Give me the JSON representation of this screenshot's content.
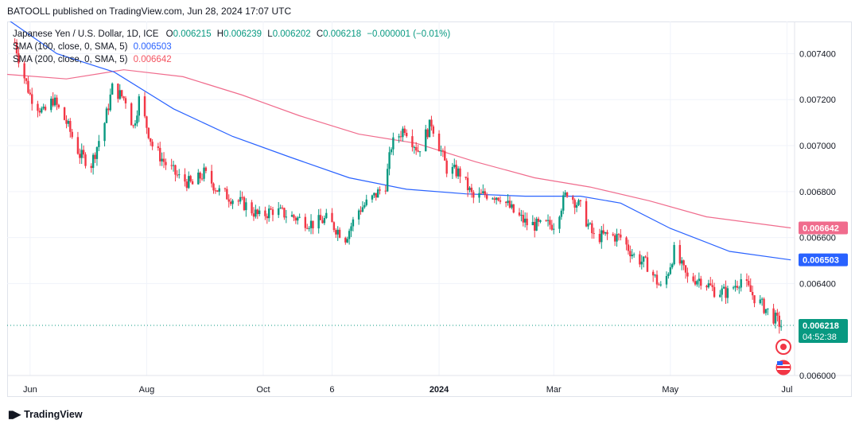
{
  "header": {
    "publisher_text": "BATOOLL published on TradingView.com, Jun 28, 2024 17:07 UTC"
  },
  "legend": {
    "symbol": "Japanese Yen / U.S. Dollar, 1D, ICE",
    "open_label": "O",
    "open": "0.006215",
    "high_label": "H",
    "high": "0.006239",
    "low_label": "L",
    "low": "0.006202",
    "close_label": "C",
    "close": "0.006218",
    "change": "−0.000001 (−0.01%)",
    "sma100_label": "SMA (100, close, 0, SMA, 5)",
    "sma100_value": "0.006503",
    "sma200_label": "SMA (200, close, 0, SMA, 5)",
    "sma200_value": "0.006642"
  },
  "footer": {
    "brand": "TradingView"
  },
  "colors": {
    "up": "#089981",
    "down": "#f23645",
    "sma100": "#2962ff",
    "sma200": "#f06c8d",
    "grid": "#f0f3fa",
    "axis_text": "#131722",
    "last_price_bg": "#089981"
  },
  "chart_data": {
    "type": "line",
    "title": "Japanese Yen / U.S. Dollar, 1D, ICE",
    "x_ticks": [
      "Jun",
      "Aug",
      "Oct",
      "6",
      "2024",
      "Mar",
      "May",
      "Jul"
    ],
    "y_ticks": [
      "0.007400",
      "0.007200",
      "0.007000",
      "0.006800",
      "0.006600",
      "0.006400",
      "0.006000"
    ],
    "ylim": [
      0.006,
      0.00754
    ],
    "grid": true,
    "last_price": "0.006218",
    "countdown": "04:52:38",
    "sma100_last": "0.006503",
    "sma200_last": "0.006642",
    "price_path": [
      [
        "2023-05-24",
        0.00745
      ],
      [
        "2023-05-27",
        0.00735
      ],
      [
        "2023-06-01",
        0.00722
      ],
      [
        "2023-06-08",
        0.00714
      ],
      [
        "2023-06-13",
        0.0072
      ],
      [
        "2023-06-20",
        0.0071
      ],
      [
        "2023-06-27",
        0.00696
      ],
      [
        "2023-07-03",
        0.00692
      ],
      [
        "2023-07-10",
        0.0071
      ],
      [
        "2023-07-14",
        0.00725
      ],
      [
        "2023-07-21",
        0.0072
      ],
      [
        "2023-07-25",
        0.00708
      ],
      [
        "2023-07-28",
        0.0072
      ],
      [
        "2023-08-04",
        0.007
      ],
      [
        "2023-08-11",
        0.00692
      ],
      [
        "2023-08-18",
        0.00686
      ],
      [
        "2023-08-25",
        0.00683
      ],
      [
        "2023-08-31",
        0.00688
      ],
      [
        "2023-09-08",
        0.0068
      ],
      [
        "2023-09-15",
        0.00677
      ],
      [
        "2023-09-22",
        0.00674
      ],
      [
        "2023-09-29",
        0.00669
      ],
      [
        "2023-10-06",
        0.00672
      ],
      [
        "2023-10-13",
        0.0067
      ],
      [
        "2023-10-20",
        0.00668
      ],
      [
        "2023-10-27",
        0.00666
      ],
      [
        "2023-11-03",
        0.00668
      ],
      [
        "2023-11-13",
        0.0066
      ],
      [
        "2023-11-20",
        0.00672
      ],
      [
        "2023-11-27",
        0.00677
      ],
      [
        "2023-12-04",
        0.00683
      ],
      [
        "2023-12-07",
        0.007
      ],
      [
        "2023-12-14",
        0.00708
      ],
      [
        "2023-12-21",
        0.00698
      ],
      [
        "2023-12-28",
        0.0071
      ],
      [
        "2024-01-05",
        0.0069
      ],
      [
        "2024-01-12",
        0.00688
      ],
      [
        "2024-01-19",
        0.00677
      ],
      [
        "2024-01-26",
        0.00679
      ],
      [
        "2024-02-02",
        0.00678
      ],
      [
        "2024-02-09",
        0.00671
      ],
      [
        "2024-02-16",
        0.00666
      ],
      [
        "2024-02-23",
        0.00665
      ],
      [
        "2024-03-01",
        0.00666
      ],
      [
        "2024-03-08",
        0.0068
      ],
      [
        "2024-03-15",
        0.00673
      ],
      [
        "2024-03-22",
        0.0066
      ],
      [
        "2024-03-29",
        0.00661
      ],
      [
        "2024-04-05",
        0.0066
      ],
      [
        "2024-04-12",
        0.00652
      ],
      [
        "2024-04-19",
        0.00648
      ],
      [
        "2024-04-26",
        0.00638
      ],
      [
        "2024-04-29",
        0.00643
      ],
      [
        "2024-05-03",
        0.00654
      ],
      [
        "2024-05-10",
        0.00642
      ],
      [
        "2024-05-17",
        0.00642
      ],
      [
        "2024-05-24",
        0.00637
      ],
      [
        "2024-05-31",
        0.00636
      ],
      [
        "2024-06-07",
        0.00642
      ],
      [
        "2024-06-14",
        0.00634
      ],
      [
        "2024-06-21",
        0.00628
      ],
      [
        "2024-06-28",
        0.006218
      ]
    ],
    "sma100_path": [
      [
        "2023-05-20",
        0.00755
      ],
      [
        "2023-06-15",
        0.0074
      ],
      [
        "2023-07-15",
        0.00732
      ],
      [
        "2023-08-15",
        0.00716
      ],
      [
        "2023-09-15",
        0.00704
      ],
      [
        "2023-10-15",
        0.00695
      ],
      [
        "2023-11-15",
        0.00686
      ],
      [
        "2023-12-15",
        0.00681
      ],
      [
        "2024-01-15",
        0.00679
      ],
      [
        "2024-02-15",
        0.00678
      ],
      [
        "2024-03-15",
        0.00678
      ],
      [
        "2024-04-05",
        0.00675
      ],
      [
        "2024-05-01",
        0.00664
      ],
      [
        "2024-06-01",
        0.00654
      ],
      [
        "2024-07-03",
        0.006503
      ]
    ],
    "sma200_path": [
      [
        "2023-05-20",
        0.00731
      ],
      [
        "2023-06-20",
        0.00729
      ],
      [
        "2023-07-20",
        0.00733
      ],
      [
        "2023-08-20",
        0.0073
      ],
      [
        "2023-09-20",
        0.00722
      ],
      [
        "2023-10-20",
        0.00713
      ],
      [
        "2023-11-20",
        0.00705
      ],
      [
        "2023-12-20",
        0.00701
      ],
      [
        "2024-01-20",
        0.00693
      ],
      [
        "2024-02-20",
        0.00686
      ],
      [
        "2024-03-20",
        0.00682
      ],
      [
        "2024-04-20",
        0.00676
      ],
      [
        "2024-05-20",
        0.00669
      ],
      [
        "2024-07-03",
        0.006642
      ]
    ]
  }
}
